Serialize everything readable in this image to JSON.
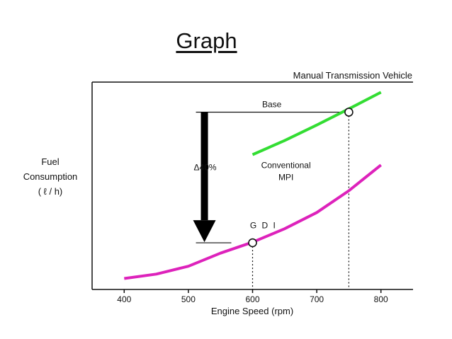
{
  "slide": {
    "title": "Graph"
  },
  "chart_data": {
    "type": "line",
    "title": "Manual Transmission Vehicle",
    "xlabel": "Engine Speed (rpm)",
    "ylabel_lines": [
      "Fuel",
      "Consumption",
      "( ℓ / h)"
    ],
    "xlim": [
      350,
      850
    ],
    "ylim": [
      0,
      100
    ],
    "x_ticks": [
      400,
      500,
      600,
      700,
      800
    ],
    "y_ticks_shown": false,
    "grid": false,
    "series": [
      {
        "name": "Conventional MPI",
        "color": "#33dd33",
        "x": [
          600,
          650,
          700,
          750,
          800
        ],
        "y": [
          65,
          71.8,
          79.3,
          87.1,
          95.1
        ]
      },
      {
        "name": "G D I",
        "color": "#dd22bb",
        "x": [
          400,
          450,
          500,
          550,
          600,
          650,
          700,
          750,
          800
        ],
        "y": [
          5.3,
          7.4,
          11.2,
          17.5,
          22.8,
          29.3,
          37.1,
          47.6,
          60
        ]
      }
    ],
    "annotations": {
      "base_label": "Base",
      "base_point": {
        "x": 750,
        "y": 85.5
      },
      "gdi_point": {
        "x": 600,
        "y": 22.5
      },
      "reduction_label": "Δ40%",
      "mpi_label_lines": [
        "Conventional",
        "MPI"
      ],
      "gdi_label": "G D I"
    }
  }
}
